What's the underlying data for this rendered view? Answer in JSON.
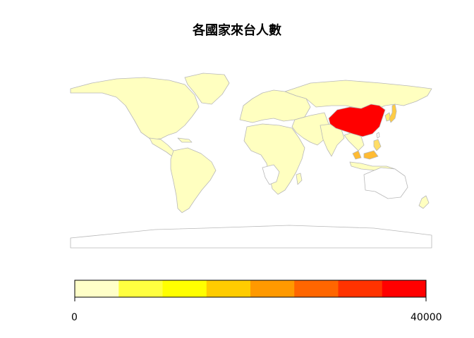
{
  "title": "各國家來台人數",
  "legend": {
    "min_label": "0",
    "max_label": "40000",
    "range": [
      0,
      40000
    ],
    "colors": [
      "#FFFFC8",
      "#FFFF40",
      "#FFFF00",
      "#FFCC00",
      "#FF9900",
      "#FF6600",
      "#FF3300",
      "#FF0000"
    ]
  },
  "colors": {
    "land_default": "#FFFFC0",
    "no_data": "#FFFFFF",
    "border": "#B8B8B8",
    "china": "#FF0000",
    "japan": "#FFCC44",
    "malaysia": "#FFBB33",
    "philippines": "#FFDD66",
    "korea": "#FFEE77"
  }
}
